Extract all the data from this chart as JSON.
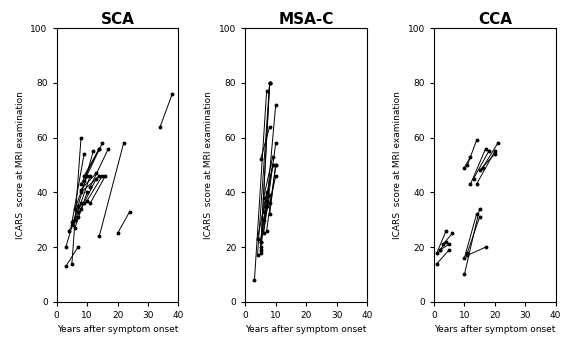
{
  "titles": [
    "SCA",
    "MSA-C",
    "CCA"
  ],
  "xlabel": "Years after symptom onset",
  "ylabel": "ICARS  score at MRI examination",
  "xlim": [
    0,
    40
  ],
  "ylim": [
    0,
    100
  ],
  "xticks": [
    0,
    10,
    20,
    30,
    40
  ],
  "yticks": [
    0,
    20,
    40,
    60,
    80,
    100
  ],
  "title_fontsize": 11,
  "label_fontsize": 6.5,
  "tick_fontsize": 6.5,
  "sca_lines": [
    [
      [
        5,
        8
      ],
      [
        14,
        60
      ]
    ],
    [
      [
        5,
        9
      ],
      [
        29,
        54
      ]
    ],
    [
      [
        6,
        10
      ],
      [
        34,
        46
      ]
    ],
    [
      [
        7,
        11
      ],
      [
        33,
        46
      ]
    ],
    [
      [
        7,
        12
      ],
      [
        35,
        55
      ]
    ],
    [
      [
        8,
        13
      ],
      [
        41,
        47
      ]
    ],
    [
      [
        8,
        14
      ],
      [
        40,
        46
      ]
    ],
    [
      [
        8,
        14
      ],
      [
        43,
        56
      ]
    ],
    [
      [
        9,
        14
      ],
      [
        46,
        56
      ]
    ],
    [
      [
        9,
        15
      ],
      [
        44,
        58
      ]
    ],
    [
      [
        10,
        15
      ],
      [
        37,
        46
      ]
    ],
    [
      [
        11,
        16
      ],
      [
        36,
        46
      ]
    ],
    [
      [
        11,
        17
      ],
      [
        42,
        56
      ]
    ],
    [
      [
        14,
        22
      ],
      [
        24,
        58
      ]
    ],
    [
      [
        5,
        8
      ],
      [
        28,
        36
      ]
    ],
    [
      [
        6,
        9
      ],
      [
        30,
        36
      ]
    ],
    [
      [
        6,
        10
      ],
      [
        27,
        40
      ]
    ],
    [
      [
        8,
        13
      ],
      [
        34,
        45
      ]
    ],
    [
      [
        3,
        7
      ],
      [
        13,
        20
      ]
    ],
    [
      [
        3,
        7
      ],
      [
        20,
        35
      ]
    ],
    [
      [
        4,
        7
      ],
      [
        26,
        31
      ]
    ],
    [
      [
        34,
        38
      ],
      [
        64,
        76
      ]
    ],
    [
      [
        20,
        24
      ],
      [
        25,
        33
      ]
    ]
  ],
  "msac_lines": [
    [
      [
        3,
        7
      ],
      [
        8,
        77
      ]
    ],
    [
      [
        4,
        8
      ],
      [
        17,
        80
      ]
    ],
    [
      [
        5,
        8
      ],
      [
        19,
        80
      ]
    ],
    [
      [
        5,
        8
      ],
      [
        18,
        80
      ]
    ],
    [
      [
        5,
        7
      ],
      [
        22,
        37
      ]
    ],
    [
      [
        5,
        8
      ],
      [
        20,
        39
      ]
    ],
    [
      [
        6,
        9
      ],
      [
        30,
        50
      ]
    ],
    [
      [
        6,
        9
      ],
      [
        33,
        50
      ]
    ],
    [
      [
        6,
        10
      ],
      [
        25,
        58
      ]
    ],
    [
      [
        6,
        9
      ],
      [
        38,
        53
      ]
    ],
    [
      [
        7,
        10
      ],
      [
        35,
        72
      ]
    ],
    [
      [
        7,
        10
      ],
      [
        26,
        50
      ]
    ],
    [
      [
        8,
        10
      ],
      [
        36,
        46
      ]
    ],
    [
      [
        5,
        7
      ],
      [
        22,
        35
      ]
    ],
    [
      [
        4,
        7
      ],
      [
        23,
        40
      ]
    ],
    [
      [
        8,
        10
      ],
      [
        32,
        50
      ]
    ],
    [
      [
        5,
        8
      ],
      [
        52,
        64
      ]
    ]
  ],
  "cca_lines": [
    [
      [
        1,
        4
      ],
      [
        18,
        26
      ]
    ],
    [
      [
        2,
        5
      ],
      [
        19,
        21
      ]
    ],
    [
      [
        3,
        6
      ],
      [
        21,
        25
      ]
    ],
    [
      [
        1,
        5
      ],
      [
        14,
        19
      ]
    ],
    [
      [
        2,
        4
      ],
      [
        19,
        22
      ]
    ],
    [
      [
        10,
        14
      ],
      [
        16,
        32
      ]
    ],
    [
      [
        10,
        15
      ],
      [
        10,
        34
      ]
    ],
    [
      [
        11,
        17
      ],
      [
        17,
        20
      ]
    ],
    [
      [
        11,
        15
      ],
      [
        18,
        31
      ]
    ],
    [
      [
        10,
        12
      ],
      [
        49,
        53
      ]
    ],
    [
      [
        11,
        14
      ],
      [
        50,
        59
      ]
    ],
    [
      [
        12,
        17
      ],
      [
        43,
        56
      ]
    ],
    [
      [
        13,
        18
      ],
      [
        45,
        55
      ]
    ],
    [
      [
        14,
        20
      ],
      [
        43,
        55
      ]
    ],
    [
      [
        15,
        20
      ],
      [
        48,
        54
      ]
    ],
    [
      [
        16,
        21
      ],
      [
        49,
        58
      ]
    ]
  ]
}
